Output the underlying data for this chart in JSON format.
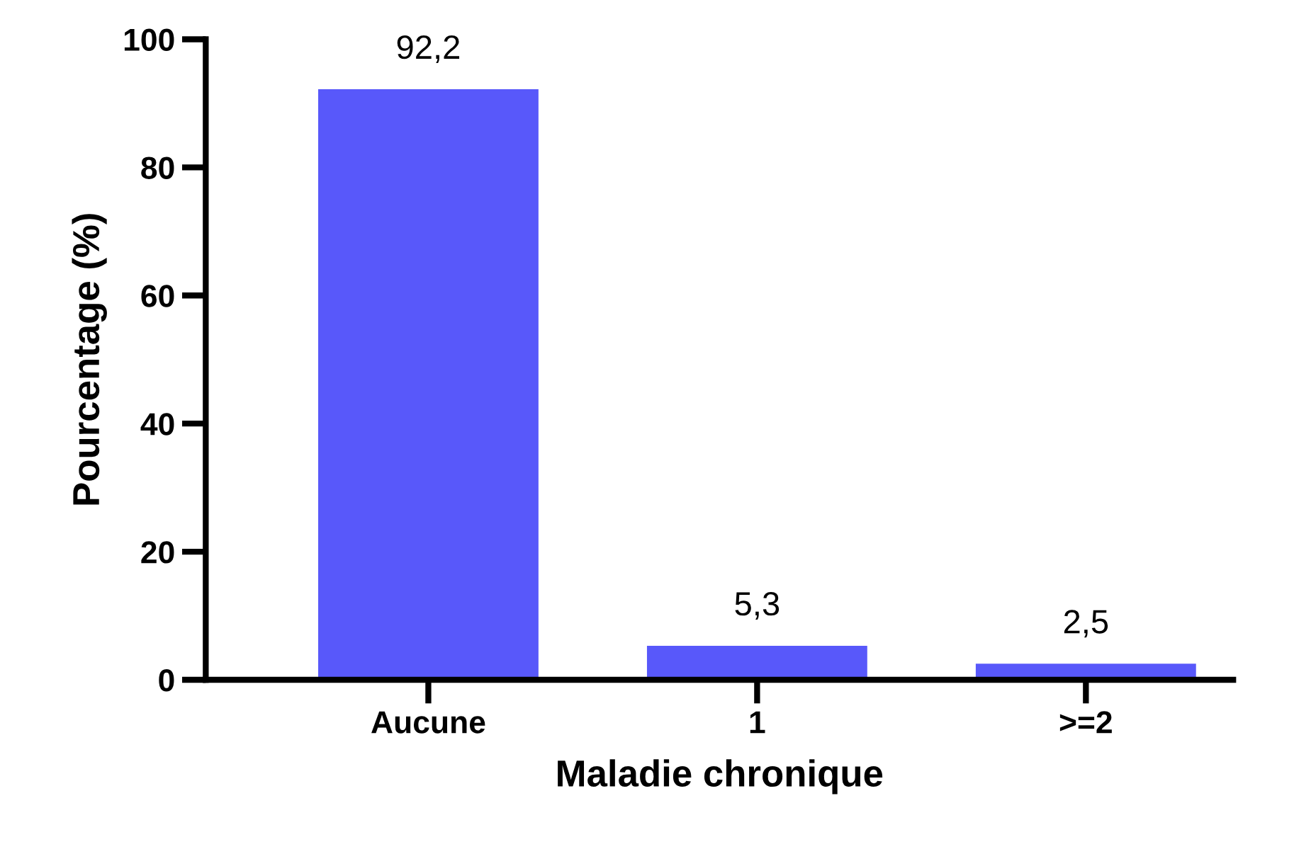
{
  "chart_data": {
    "type": "bar",
    "xlabel": "Maladie chronique",
    "ylabel": "Pourcentage (%)",
    "categories": [
      "Aucune",
      "1",
      ">=2"
    ],
    "values": [
      92.2,
      5.3,
      2.5
    ],
    "value_labels": [
      "92,2",
      "5,3",
      "2,5"
    ],
    "color": "#5858fa",
    "ylim": [
      0,
      100
    ],
    "yticks": [
      0,
      20,
      40,
      60,
      80,
      100
    ],
    "grid": false,
    "legend": false
  }
}
